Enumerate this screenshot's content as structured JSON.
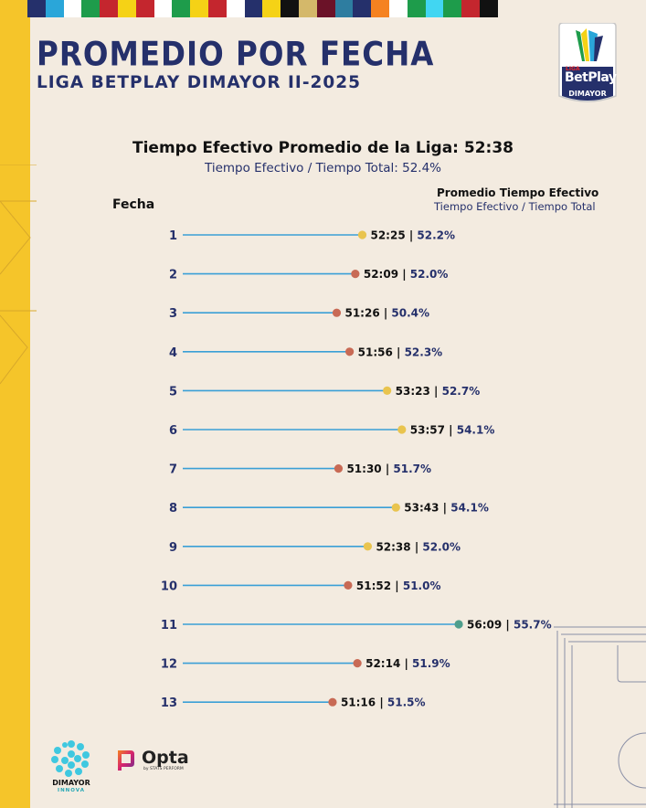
{
  "header": {
    "title": "PROMEDIO POR FECHA",
    "subtitle": "LIGA BETPLAY DIMAYOR II-2025",
    "flag_colors": [
      "#25306b",
      "#2aa6d9",
      "#ffffff",
      "#1e9c4b",
      "#c4262e",
      "#f5d216",
      "#c4262e",
      "#ffffff",
      "#1e9c4b",
      "#f5d216",
      "#c4262e",
      "#ffffff",
      "#25306b",
      "#f5d216",
      "#111111",
      "#d4b86a",
      "#6b1228",
      "#2e7da0",
      "#25306b",
      "#f58220",
      "#ffffff",
      "#1e9c4b",
      "#41d6f2",
      "#1e9c4b",
      "#c4262e",
      "#111111"
    ]
  },
  "badge": {
    "liga": "LIGA",
    "brand": "BetPlay",
    "org": "DIMAYOR"
  },
  "summary": {
    "league_average": "Tiempo Efectivo Promedio de la Liga: 52:38",
    "league_ratio": "Tiempo Efectivo / Tiempo Total: 52.4%"
  },
  "columns": {
    "fecha": "Fecha",
    "average": "Promedio Tiempo Efectivo",
    "ratio": "Tiempo Efectivo / Tiempo Total"
  },
  "chart_data": {
    "type": "dot",
    "categories": [
      "1",
      "2",
      "3",
      "4",
      "5",
      "6",
      "7",
      "8",
      "9",
      "10",
      "11",
      "12",
      "13"
    ],
    "series": [
      {
        "name": "Promedio Tiempo Efectivo",
        "time_labels": [
          "52:25",
          "52:09",
          "51:26",
          "51:56",
          "53:23",
          "53:57",
          "51:30",
          "53:43",
          "52:38",
          "51:52",
          "56:09",
          "52:14",
          "51:16"
        ],
        "minutes": [
          52.42,
          52.15,
          51.43,
          51.93,
          53.38,
          53.95,
          51.5,
          53.72,
          52.63,
          51.87,
          56.15,
          52.23,
          51.27
        ]
      },
      {
        "name": "Tiempo Efectivo / Tiempo Total",
        "labels": [
          "52.2%",
          "52.0%",
          "50.4%",
          "52.3%",
          "52.7%",
          "54.1%",
          "51.7%",
          "54.1%",
          "52.0%",
          "51.0%",
          "55.7%",
          "51.9%",
          "51.5%"
        ]
      }
    ],
    "dot_colors": [
      "#e9c44e",
      "#c86a55",
      "#c86a55",
      "#c86a55",
      "#e9c44e",
      "#e9c44e",
      "#c86a55",
      "#e9c44e",
      "#e9c44e",
      "#c86a55",
      "#4e9e8c",
      "#c86a55",
      "#c86a55"
    ],
    "line_color": "#3a9fd6",
    "grid": false
  },
  "footer": {
    "dimayor_logo": "DIMAYOR",
    "dimayor_sub": "INNOVA",
    "opta_logo": "Opta",
    "opta_sub": "by STATS PERFORM"
  }
}
